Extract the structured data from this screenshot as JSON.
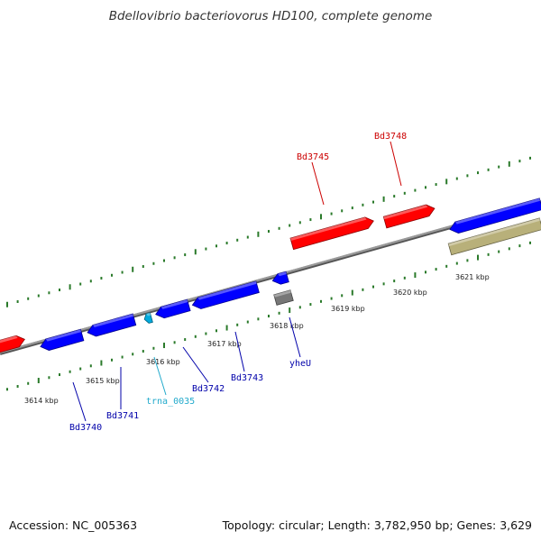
{
  "title": "Bdellovibrio bacteriovorus HD100, complete genome",
  "footer": {
    "accession": "Accession: NC_005363",
    "summary": "Topology: circular; Length: 3,782,950 bp; Genes: 3,629"
  },
  "colors": {
    "forward_gene": "#ff0000",
    "reverse_gene": "#0000ff",
    "trna": "#00aadd",
    "pseudo": "#777777",
    "other_feature": "#b8b07a",
    "tick": "#2a7a2a",
    "backbone": "#888888"
  },
  "scale_labels": [
    "3614 kbp",
    "3615 kbp",
    "3616 kbp",
    "3617 kbp",
    "3618 kbp",
    "3619 kbp",
    "3620 kbp",
    "3621 kbp"
  ],
  "gene_labels": [
    {
      "name": "Bd3745",
      "strand": "forward"
    },
    {
      "name": "Bd3748",
      "strand": "forward"
    },
    {
      "name": "Bd3740",
      "strand": "reverse"
    },
    {
      "name": "Bd3741",
      "strand": "reverse"
    },
    {
      "name": "trna_0035",
      "strand": "trna"
    },
    {
      "name": "Bd3742",
      "strand": "reverse"
    },
    {
      "name": "Bd3743",
      "strand": "reverse"
    },
    {
      "name": "yheU",
      "strand": "reverse"
    }
  ]
}
